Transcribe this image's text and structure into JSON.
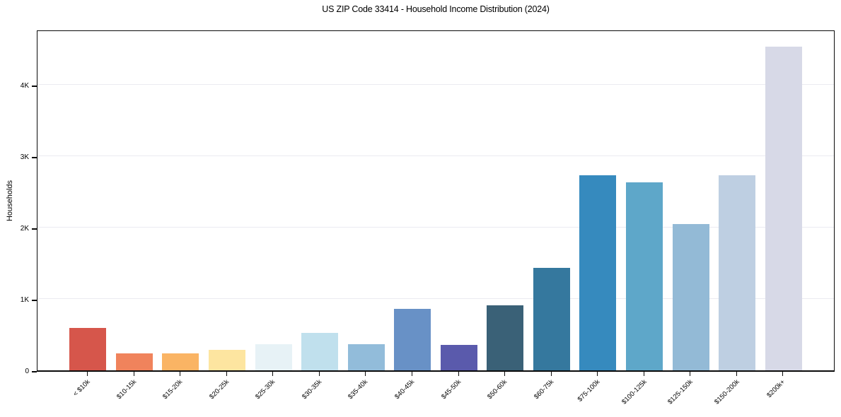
{
  "chart_data": {
    "type": "bar",
    "title": "US ZIP Code 33414 - Household Income Distribution (2024)",
    "xlabel": "",
    "ylabel": "Households",
    "categories": [
      "< $10k",
      "$10-15k",
      "$15-20k",
      "$20-25k",
      "$25-30k",
      "$30-35k",
      "$35-40k",
      "$40-45k",
      "$45-50k",
      "$50-60k",
      "$60-75k",
      "$75-100k",
      "$100-125k",
      "$125-150k",
      "$150-200k",
      "$200k+"
    ],
    "values": [
      590,
      235,
      235,
      290,
      365,
      520,
      370,
      860,
      360,
      910,
      1440,
      2730,
      2630,
      2050,
      2730,
      4530
    ],
    "bar_colors": [
      "#d6564b",
      "#f0835c",
      "#fab464",
      "#fde5a0",
      "#e7f2f6",
      "#c0e0ed",
      "#92bcda",
      "#6891c6",
      "#5a5aac",
      "#3a6177",
      "#35789e",
      "#368abe",
      "#5ea7c9",
      "#93bad6",
      "#becfe2",
      "#d7d9e7"
    ],
    "yticks": {
      "labels": [
        "0",
        "1K",
        "2K",
        "3K",
        "4K"
      ],
      "values": [
        0,
        1000,
        2000,
        3000,
        4000
      ]
    },
    "ylim": [
      0,
      4780
    ],
    "grid": "horizontal",
    "grid_color": "#ebebf1",
    "axis_color": "#0a0a0a",
    "background_color": "#ffffff",
    "legend": "none"
  }
}
